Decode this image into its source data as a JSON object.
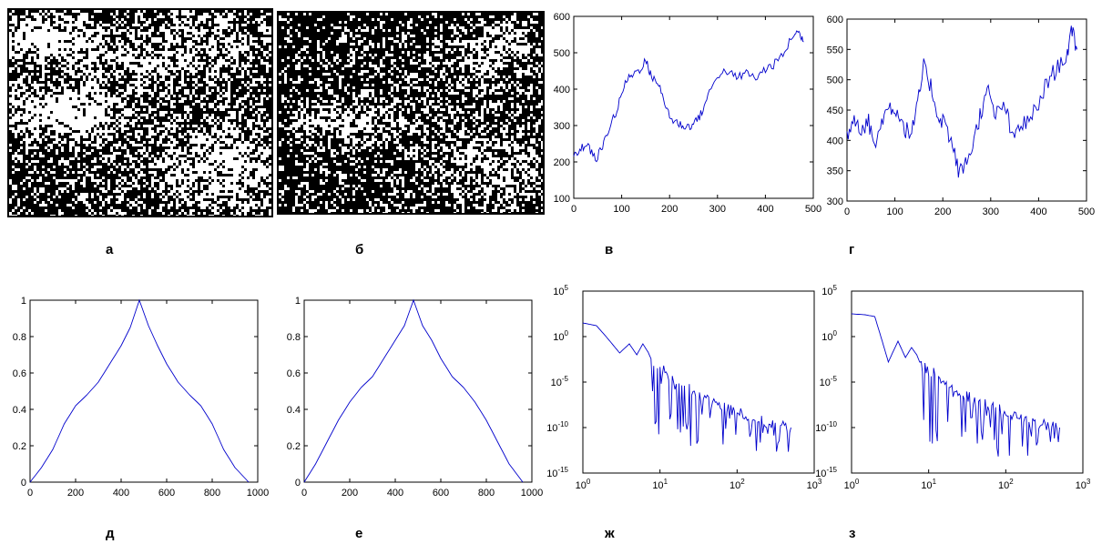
{
  "captions": {
    "a": "а",
    "b": "б",
    "v": "в",
    "g": "г",
    "d": "д",
    "e": "е",
    "zh": "ж",
    "z": "з"
  },
  "images": [
    {
      "name": "binary-texture-a",
      "caption": "а",
      "white_fraction": 0.45
    },
    {
      "name": "binary-texture-b",
      "caption": "б",
      "white_fraction": 0.38
    }
  ],
  "chart_data": [
    {
      "id": "v",
      "type": "line",
      "caption": "в",
      "color": "#0000cc",
      "xlim": [
        0,
        500
      ],
      "ylim": [
        100,
        600
      ],
      "xticks": [
        0,
        100,
        200,
        300,
        400,
        500
      ],
      "yticks": [
        100,
        200,
        300,
        400,
        500,
        600
      ],
      "x": [
        0,
        15,
        30,
        45,
        60,
        75,
        90,
        105,
        120,
        135,
        150,
        160,
        175,
        190,
        205,
        220,
        235,
        250,
        265,
        280,
        300,
        320,
        340,
        360,
        380,
        400,
        420,
        440,
        460,
        470,
        480
      ],
      "y": [
        210,
        240,
        245,
        205,
        240,
        300,
        340,
        410,
        440,
        450,
        480,
        440,
        420,
        360,
        315,
        305,
        295,
        305,
        330,
        380,
        440,
        450,
        430,
        445,
        430,
        455,
        470,
        500,
        555,
        555,
        530
      ]
    },
    {
      "id": "g",
      "type": "line",
      "caption": "г",
      "color": "#0000cc",
      "xlim": [
        0,
        500
      ],
      "ylim": [
        300,
        600
      ],
      "xticks": [
        0,
        100,
        200,
        300,
        400,
        500
      ],
      "yticks": [
        300,
        350,
        400,
        450,
        500,
        550,
        600
      ],
      "x": [
        0,
        15,
        30,
        45,
        60,
        75,
        90,
        105,
        120,
        135,
        150,
        160,
        175,
        190,
        205,
        220,
        235,
        250,
        265,
        280,
        295,
        310,
        330,
        345,
        360,
        380,
        400,
        420,
        440,
        460,
        470,
        480
      ],
      "y": [
        410,
        440,
        420,
        430,
        390,
        440,
        455,
        450,
        420,
        410,
        470,
        520,
        490,
        440,
        430,
        390,
        345,
        365,
        400,
        450,
        480,
        440,
        460,
        400,
        425,
        430,
        460,
        500,
        520,
        545,
        580,
        550
      ]
    },
    {
      "id": "d",
      "type": "line",
      "caption": "д",
      "color": "#0000cc",
      "xlim": [
        0,
        1000
      ],
      "ylim": [
        0,
        1
      ],
      "xticks": [
        0,
        200,
        400,
        600,
        800,
        1000
      ],
      "yticks": [
        0,
        0.2,
        0.4,
        0.6,
        0.8,
        1
      ],
      "x": [
        0,
        50,
        100,
        150,
        200,
        250,
        300,
        350,
        400,
        440,
        480,
        520,
        560,
        600,
        650,
        700,
        750,
        800,
        850,
        900,
        960
      ],
      "y": [
        0,
        0.08,
        0.18,
        0.32,
        0.42,
        0.48,
        0.55,
        0.65,
        0.75,
        0.85,
        1.0,
        0.86,
        0.75,
        0.65,
        0.55,
        0.48,
        0.42,
        0.32,
        0.18,
        0.08,
        0
      ]
    },
    {
      "id": "e",
      "type": "line",
      "caption": "е",
      "color": "#0000cc",
      "xlim": [
        0,
        1000
      ],
      "ylim": [
        0,
        1
      ],
      "xticks": [
        0,
        200,
        400,
        600,
        800,
        1000
      ],
      "yticks": [
        0,
        0.2,
        0.4,
        0.6,
        0.8,
        1
      ],
      "x": [
        0,
        50,
        100,
        150,
        200,
        250,
        300,
        350,
        400,
        440,
        480,
        520,
        560,
        600,
        650,
        700,
        750,
        800,
        850,
        900,
        960
      ],
      "y": [
        0,
        0.1,
        0.22,
        0.34,
        0.44,
        0.52,
        0.58,
        0.68,
        0.78,
        0.86,
        1.0,
        0.86,
        0.78,
        0.68,
        0.58,
        0.52,
        0.44,
        0.34,
        0.22,
        0.1,
        0
      ]
    },
    {
      "id": "zh",
      "type": "line",
      "caption": "ж",
      "color": "#0000cc",
      "xscale": "log",
      "yscale": "log",
      "xlim": [
        1,
        1000
      ],
      "ylim_exp": [
        -15,
        5
      ],
      "xticks_exp": [
        0,
        1,
        2,
        3
      ],
      "yticks_exp": [
        5,
        0,
        -5,
        -10,
        -15
      ],
      "x": [
        1,
        1.5,
        2,
        3,
        4,
        5,
        6,
        7,
        8,
        10,
        15,
        20,
        30,
        50,
        80,
        120,
        200,
        300,
        500
      ],
      "y_exp": [
        1.5,
        1.2,
        0,
        -1.8,
        -0.8,
        -2.0,
        -0.8,
        -1.7,
        -2.8,
        -3.5,
        -4.6,
        -5.2,
        -6.4,
        -7.2,
        -8.0,
        -8.6,
        -9.2,
        -9.6,
        -10.0
      ],
      "noise_floor_exp": -13
    },
    {
      "id": "z",
      "type": "line",
      "caption": "з",
      "color": "#0000cc",
      "xscale": "log",
      "yscale": "log",
      "xlim": [
        1,
        1000
      ],
      "ylim_exp": [
        -15,
        5
      ],
      "xticks_exp": [
        0,
        1,
        2,
        3
      ],
      "yticks_exp": [
        5,
        0,
        -5,
        -10,
        -15
      ],
      "x": [
        1,
        1.5,
        2,
        2.5,
        3,
        4,
        5,
        6,
        7,
        8,
        10,
        15,
        20,
        30,
        50,
        80,
        120,
        200,
        300,
        500
      ],
      "y_exp": [
        2.5,
        2.4,
        2.2,
        -0.5,
        -2.8,
        -0.5,
        -2.3,
        -1.2,
        -2.0,
        -3.2,
        -3.6,
        -4.8,
        -5.6,
        -6.4,
        -7.3,
        -8.0,
        -8.6,
        -9.2,
        -9.6,
        -10.0
      ],
      "noise_floor_exp": -14
    }
  ]
}
